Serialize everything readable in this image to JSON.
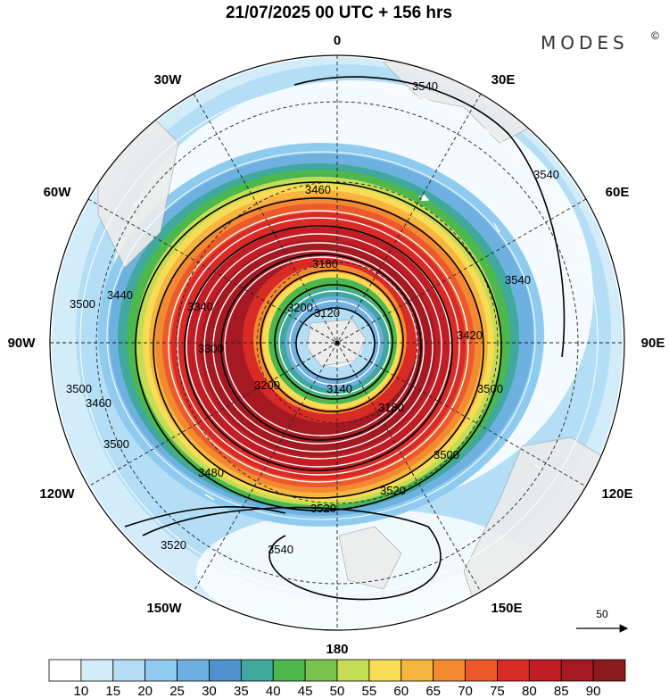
{
  "title": "21/07/2025  00 UTC  + 156 hrs",
  "brand": "MODES",
  "brand_mark": "©",
  "longitude_labels": [
    "0",
    "30E",
    "60E",
    "90E",
    "120E",
    "150E",
    "180",
    "150W",
    "120W",
    "90W",
    "60W",
    "30W"
  ],
  "contours": {
    "levels": [
      3120,
      3140,
      3160,
      3180,
      3200,
      3300,
      3340,
      3400,
      3420,
      3440,
      3460,
      3480,
      3500,
      3520,
      3540
    ],
    "labels": [
      "3120",
      "3140",
      "3180",
      "3200",
      "3300",
      "3340",
      "3400",
      "3420",
      "3440",
      "3460",
      "3480",
      "3500",
      "3520",
      "3540"
    ]
  },
  "wind_reference": {
    "value": "50"
  },
  "colorbar": {
    "ticks": [
      "10",
      "15",
      "20",
      "25",
      "30",
      "35",
      "40",
      "45",
      "50",
      "55",
      "60",
      "65",
      "70",
      "75",
      "80",
      "85",
      "90"
    ],
    "colors": [
      "#ffffff",
      "#d2ecfa",
      "#b4def6",
      "#8fcbef",
      "#6eb0e0",
      "#4f92cd",
      "#41a89d",
      "#4cb84e",
      "#79c24e",
      "#c5dc55",
      "#f9dc55",
      "#f6b53e",
      "#f38a32",
      "#ec5a2b",
      "#d92b26",
      "#c01d24",
      "#a51a22",
      "#8b1a1e"
    ]
  },
  "colors": {
    "calm": "#f3f3f3",
    "light": "#c7e6f7",
    "medium": "#8fcbef",
    "strong": "#d92b26",
    "land": "#ececec"
  }
}
